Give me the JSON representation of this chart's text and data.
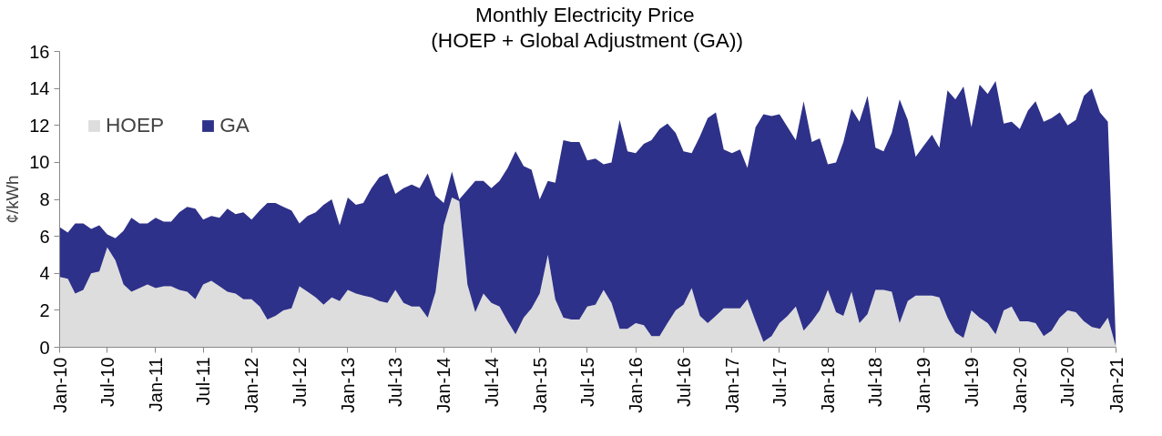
{
  "chart_data": {
    "type": "area",
    "title": "Monthly  Electricity Price",
    "subtitle": "(HOEP + Global Adjustment (GA))",
    "ylabel": "¢/kWh",
    "stacked": true,
    "grid": false,
    "legend": "top left",
    "x": [
      "2010-01",
      "2010-02",
      "2010-03",
      "2010-04",
      "2010-05",
      "2010-06",
      "2010-07",
      "2010-08",
      "2010-09",
      "2010-10",
      "2010-11",
      "2010-12",
      "2011-01",
      "2011-02",
      "2011-03",
      "2011-04",
      "2011-05",
      "2011-06",
      "2011-07",
      "2011-08",
      "2011-09",
      "2011-10",
      "2011-11",
      "2011-12",
      "2012-01",
      "2012-02",
      "2012-03",
      "2012-04",
      "2012-05",
      "2012-06",
      "2012-07",
      "2012-08",
      "2012-09",
      "2012-10",
      "2012-11",
      "2012-12",
      "2013-01",
      "2013-02",
      "2013-03",
      "2013-04",
      "2013-05",
      "2013-06",
      "2013-07",
      "2013-08",
      "2013-09",
      "2013-10",
      "2013-11",
      "2013-12",
      "2014-01",
      "2014-02",
      "2014-03",
      "2014-04",
      "2014-05",
      "2014-06",
      "2014-07",
      "2014-08",
      "2014-09",
      "2014-10",
      "2014-11",
      "2014-12",
      "2015-01",
      "2015-02",
      "2015-03",
      "2015-04",
      "2015-05",
      "2015-06",
      "2015-07",
      "2015-08",
      "2015-09",
      "2015-10",
      "2015-11",
      "2015-12",
      "2016-01",
      "2016-02",
      "2016-03",
      "2016-04",
      "2016-05",
      "2016-06",
      "2016-07",
      "2016-08",
      "2016-09",
      "2016-10",
      "2016-11",
      "2016-12",
      "2017-01",
      "2017-02",
      "2017-03",
      "2017-04",
      "2017-05",
      "2017-06",
      "2017-07",
      "2017-08",
      "2017-09",
      "2017-10",
      "2017-11",
      "2017-12",
      "2018-01",
      "2018-02",
      "2018-03",
      "2018-04",
      "2018-05",
      "2018-06",
      "2018-07",
      "2018-08",
      "2018-09",
      "2018-10",
      "2018-11",
      "2018-12",
      "2019-01",
      "2019-02",
      "2019-03",
      "2019-04",
      "2019-05",
      "2019-06",
      "2019-07",
      "2019-08",
      "2019-09",
      "2019-10",
      "2019-11",
      "2019-12",
      "2020-01",
      "2020-02",
      "2020-03",
      "2020-04",
      "2020-05",
      "2020-06",
      "2020-07",
      "2020-08",
      "2020-09",
      "2020-10",
      "2020-11",
      "2020-12",
      "2021-01"
    ],
    "series": [
      {
        "name": "HOEP",
        "color": "#dddddd",
        "values": [
          3.8,
          3.7,
          2.9,
          3.1,
          4.0,
          4.1,
          5.4,
          4.7,
          3.4,
          3.0,
          3.2,
          3.4,
          3.2,
          3.3,
          3.3,
          3.1,
          3.0,
          2.6,
          3.4,
          3.6,
          3.3,
          3.0,
          2.9,
          2.6,
          2.6,
          2.2,
          1.5,
          1.7,
          2.0,
          2.1,
          3.3,
          3.0,
          2.7,
          2.3,
          2.7,
          2.5,
          3.1,
          2.9,
          2.8,
          2.7,
          2.5,
          2.4,
          3.1,
          2.4,
          2.2,
          2.2,
          1.6,
          3.0,
          6.6,
          8.1,
          7.9,
          3.4,
          1.9,
          2.9,
          2.4,
          2.2,
          1.4,
          0.7,
          1.6,
          2.1,
          2.9,
          5.0,
          2.6,
          1.6,
          1.5,
          1.5,
          2.2,
          2.3,
          3.1,
          2.4,
          1.0,
          1.0,
          1.3,
          1.2,
          0.6,
          0.6,
          1.3,
          2.0,
          2.3,
          3.2,
          1.7,
          1.3,
          1.7,
          2.1,
          2.1,
          2.1,
          2.6,
          1.4,
          0.3,
          0.6,
          1.3,
          1.7,
          2.2,
          0.9,
          1.4,
          2.0,
          3.1,
          1.9,
          1.7,
          3.0,
          1.3,
          1.8,
          3.1,
          3.1,
          3.0,
          1.3,
          2.5,
          2.8,
          2.8,
          2.8,
          2.7,
          1.6,
          0.8,
          0.5,
          2.0,
          1.6,
          1.3,
          0.7,
          2.0,
          2.2,
          1.4,
          1.4,
          1.3,
          0.6,
          0.9,
          1.6,
          2.0,
          1.9,
          1.4,
          1.1,
          1.0,
          1.6,
          0
        ]
      },
      {
        "name": "GA",
        "color": "#2e3189",
        "values": [
          2.7,
          2.5,
          3.8,
          3.6,
          2.4,
          2.5,
          0.7,
          1.2,
          2.9,
          4.0,
          3.5,
          3.3,
          3.8,
          3.5,
          3.5,
          4.2,
          4.6,
          4.9,
          3.5,
          3.5,
          3.7,
          4.5,
          4.3,
          4.7,
          4.3,
          5.2,
          6.3,
          6.1,
          5.6,
          5.3,
          3.4,
          4.1,
          4.6,
          5.4,
          5.3,
          4.1,
          5.0,
          4.8,
          5.0,
          5.9,
          6.7,
          7.0,
          5.2,
          6.2,
          6.6,
          6.4,
          7.8,
          5.2,
          1.2,
          1.4,
          0.1,
          5.1,
          7.1,
          6.1,
          6.2,
          6.8,
          8.3,
          9.9,
          8.2,
          7.5,
          5.1,
          4.0,
          6.3,
          9.6,
          9.6,
          9.6,
          7.9,
          7.9,
          6.8,
          7.6,
          11.3,
          9.6,
          9.2,
          9.8,
          10.6,
          11.2,
          10.8,
          9.6,
          8.3,
          7.3,
          9.7,
          11.1,
          11.0,
          8.6,
          8.4,
          8.6,
          7.1,
          10.5,
          12.3,
          11.9,
          11.3,
          10.2,
          9.0,
          12.4,
          9.7,
          9.3,
          6.8,
          8.1,
          9.4,
          9.9,
          10.9,
          11.8,
          7.7,
          7.5,
          8.6,
          12.1,
          9.8,
          7.5,
          8.1,
          8.7,
          8.1,
          12.3,
          12.6,
          13.6,
          9.9,
          12.6,
          12.4,
          13.7,
          10.1,
          10.0,
          10.4,
          11.4,
          12.0,
          11.6,
          11.5,
          11.1,
          10.0,
          10.4,
          12.2,
          12.9,
          11.7,
          10.6,
          0
        ]
      }
    ],
    "xlim": [
      "2010-01",
      "2021-01"
    ],
    "xticks": [
      {
        "value": "2010-01",
        "label": "Jan-10"
      },
      {
        "value": "2010-07",
        "label": "Jul-10"
      },
      {
        "value": "2011-01",
        "label": "Jan-11"
      },
      {
        "value": "2011-07",
        "label": "Jul-11"
      },
      {
        "value": "2012-01",
        "label": "Jan-12"
      },
      {
        "value": "2012-07",
        "label": "Jul-12"
      },
      {
        "value": "2013-01",
        "label": "Jan-13"
      },
      {
        "value": "2013-07",
        "label": "Jul-13"
      },
      {
        "value": "2014-01",
        "label": "Jan-14"
      },
      {
        "value": "2014-07",
        "label": "Jul-14"
      },
      {
        "value": "2015-01",
        "label": "Jan-15"
      },
      {
        "value": "2015-07",
        "label": "Jul-15"
      },
      {
        "value": "2016-01",
        "label": "Jan-16"
      },
      {
        "value": "2016-07",
        "label": "Jul-16"
      },
      {
        "value": "2017-01",
        "label": "Jan-17"
      },
      {
        "value": "2017-07",
        "label": "Jul-17"
      },
      {
        "value": "2018-01",
        "label": "Jan-18"
      },
      {
        "value": "2018-07",
        "label": "Jul-18"
      },
      {
        "value": "2019-01",
        "label": "Jan-19"
      },
      {
        "value": "2019-07",
        "label": "Jul-19"
      },
      {
        "value": "2020-01",
        "label": "Jan-20"
      },
      {
        "value": "2020-07",
        "label": "Jul-20"
      },
      {
        "value": "2021-01",
        "label": "Jan-21"
      }
    ],
    "ylim": [
      0,
      16
    ],
    "yticks": [
      0,
      2,
      4,
      6,
      8,
      10,
      12,
      14,
      16
    ]
  }
}
